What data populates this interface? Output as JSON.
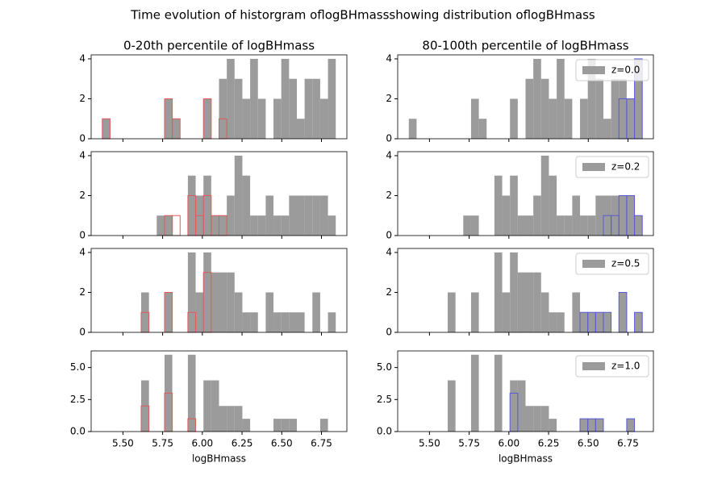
{
  "figure_title": "Time evolution of historgram oflogBHmassshowing distribution oflogBHmass",
  "chart_data": [
    {
      "type": "histogram",
      "title": "0-20th percentile of logBHmass",
      "bins": [
        5.37,
        5.419,
        5.468,
        5.517,
        5.566,
        5.615,
        5.664,
        5.713,
        5.762,
        5.811,
        5.86,
        5.909,
        5.958,
        6.007,
        6.056,
        6.105,
        6.154,
        6.203,
        6.252,
        6.301,
        6.35,
        6.399,
        6.448,
        6.497,
        6.546,
        6.595,
        6.644,
        6.693,
        6.742,
        6.791,
        6.84
      ],
      "series": [
        {
          "color": "#9b9b9b",
          "style": "filled",
          "values": [
            1,
            0,
            0,
            0,
            0,
            0,
            0,
            0,
            2,
            1,
            0,
            0,
            0,
            2,
            0,
            3,
            4,
            3,
            2,
            4,
            2,
            0,
            2,
            4,
            3,
            1,
            3,
            3,
            2,
            4
          ]
        },
        {
          "color": "#e05a5a",
          "style": "step",
          "values": [
            1,
            0,
            0,
            0,
            0,
            0,
            0,
            0,
            2,
            1,
            0,
            0,
            0,
            2,
            0,
            1,
            0,
            0,
            0,
            0,
            0,
            0,
            0,
            0,
            0,
            0,
            0,
            0,
            0,
            0
          ]
        }
      ],
      "xlim": [
        5.3,
        6.91
      ],
      "xticks": [
        5.5,
        5.75,
        6,
        6.25,
        6.5,
        6.75
      ],
      "ylim": [
        0,
        4.2
      ],
      "yticks": [
        0,
        2,
        4
      ]
    },
    {
      "type": "histogram",
      "title": "80-100th percentile of logBHmass",
      "bins": [
        5.37,
        5.419,
        5.468,
        5.517,
        5.566,
        5.615,
        5.664,
        5.713,
        5.762,
        5.811,
        5.86,
        5.909,
        5.958,
        6.007,
        6.056,
        6.105,
        6.154,
        6.203,
        6.252,
        6.301,
        6.35,
        6.399,
        6.448,
        6.497,
        6.546,
        6.595,
        6.644,
        6.693,
        6.742,
        6.791,
        6.84
      ],
      "series": [
        {
          "name": "z=0.0",
          "color": "#9b9b9b",
          "style": "filled",
          "values": [
            1,
            0,
            0,
            0,
            0,
            0,
            0,
            0,
            2,
            1,
            0,
            0,
            0,
            2,
            0,
            3,
            4,
            3,
            2,
            4,
            2,
            0,
            2,
            4,
            3,
            1,
            3,
            3,
            2,
            4
          ]
        },
        {
          "color": "#5a5ad6",
          "style": "step",
          "values": [
            0,
            0,
            0,
            0,
            0,
            0,
            0,
            0,
            0,
            0,
            0,
            0,
            0,
            0,
            0,
            0,
            0,
            0,
            0,
            0,
            0,
            0,
            0,
            0,
            0,
            0,
            0,
            2,
            2,
            4
          ]
        }
      ],
      "legend": "upper right",
      "xlim": [
        5.3,
        6.91
      ],
      "xticks": [
        5.5,
        5.75,
        6,
        6.25,
        6.5,
        6.75
      ],
      "ylim": [
        0,
        4.2
      ],
      "yticks": [
        0,
        2,
        4
      ]
    },
    {
      "type": "histogram",
      "bins": [
        5.37,
        5.419,
        5.468,
        5.517,
        5.566,
        5.615,
        5.664,
        5.713,
        5.762,
        5.811,
        5.86,
        5.909,
        5.958,
        6.007,
        6.056,
        6.105,
        6.154,
        6.203,
        6.252,
        6.301,
        6.35,
        6.399,
        6.448,
        6.497,
        6.546,
        6.595,
        6.644,
        6.693,
        6.742,
        6.791,
        6.84
      ],
      "series": [
        {
          "color": "#9b9b9b",
          "style": "filled",
          "values": [
            0,
            0,
            0,
            0,
            0,
            0,
            0,
            1,
            1,
            0,
            0,
            3,
            2,
            3,
            1,
            1,
            2,
            4,
            3,
            1,
            1,
            2,
            1,
            1,
            2,
            2,
            2,
            2,
            2,
            1
          ]
        },
        {
          "color": "#e05a5a",
          "style": "step",
          "values": [
            0,
            0,
            0,
            0,
            0,
            0,
            0,
            0,
            1,
            1,
            0,
            2,
            1,
            2,
            1,
            1,
            0,
            0,
            0,
            0,
            0,
            0,
            0,
            0,
            0,
            0,
            0,
            0,
            0,
            0
          ]
        }
      ],
      "xlim": [
        5.3,
        6.91
      ],
      "xticks": [
        5.5,
        5.75,
        6,
        6.25,
        6.5,
        6.75
      ],
      "ylim": [
        0,
        4.2
      ],
      "yticks": [
        0,
        2,
        4
      ]
    },
    {
      "type": "histogram",
      "bins": [
        5.37,
        5.419,
        5.468,
        5.517,
        5.566,
        5.615,
        5.664,
        5.713,
        5.762,
        5.811,
        5.86,
        5.909,
        5.958,
        6.007,
        6.056,
        6.105,
        6.154,
        6.203,
        6.252,
        6.301,
        6.35,
        6.399,
        6.448,
        6.497,
        6.546,
        6.595,
        6.644,
        6.693,
        6.742,
        6.791,
        6.84
      ],
      "series": [
        {
          "name": "z=0.2",
          "color": "#9b9b9b",
          "style": "filled",
          "values": [
            0,
            0,
            0,
            0,
            0,
            0,
            0,
            1,
            1,
            0,
            0,
            3,
            2,
            3,
            1,
            1,
            2,
            4,
            3,
            1,
            1,
            2,
            1,
            1,
            2,
            2,
            2,
            2,
            2,
            1
          ]
        },
        {
          "color": "#5a5ad6",
          "style": "step",
          "values": [
            0,
            0,
            0,
            0,
            0,
            0,
            0,
            0,
            0,
            0,
            0,
            0,
            0,
            0,
            0,
            0,
            0,
            0,
            0,
            0,
            0,
            0,
            0,
            0,
            0,
            1,
            1,
            2,
            2,
            1
          ]
        }
      ],
      "legend": "upper right",
      "xlim": [
        5.3,
        6.91
      ],
      "xticks": [
        5.5,
        5.75,
        6,
        6.25,
        6.5,
        6.75
      ],
      "ylim": [
        0,
        4.2
      ],
      "yticks": [
        0,
        2,
        4
      ]
    },
    {
      "type": "histogram",
      "bins": [
        5.37,
        5.419,
        5.468,
        5.517,
        5.566,
        5.615,
        5.664,
        5.713,
        5.762,
        5.811,
        5.86,
        5.909,
        5.958,
        6.007,
        6.056,
        6.105,
        6.154,
        6.203,
        6.252,
        6.301,
        6.35,
        6.399,
        6.448,
        6.497,
        6.546,
        6.595,
        6.644,
        6.693,
        6.742,
        6.791,
        6.84
      ],
      "series": [
        {
          "color": "#9b9b9b",
          "style": "filled",
          "values": [
            0,
            0,
            0,
            0,
            0,
            2,
            0,
            0,
            2,
            0,
            0,
            4,
            2,
            4,
            3,
            3,
            3,
            2,
            1,
            1,
            0,
            2,
            1,
            1,
            1,
            1,
            0,
            2,
            0,
            1
          ]
        },
        {
          "color": "#e05a5a",
          "style": "step",
          "values": [
            0,
            0,
            0,
            0,
            0,
            1,
            0,
            0,
            2,
            0,
            0,
            1,
            0,
            3,
            0,
            0,
            0,
            0,
            0,
            0,
            0,
            0,
            0,
            0,
            0,
            0,
            0,
            0,
            0,
            0
          ]
        }
      ],
      "xlim": [
        5.3,
        6.91
      ],
      "xticks": [
        5.5,
        5.75,
        6,
        6.25,
        6.5,
        6.75
      ],
      "ylim": [
        0,
        4.2
      ],
      "yticks": [
        0,
        2,
        4
      ]
    },
    {
      "type": "histogram",
      "bins": [
        5.37,
        5.419,
        5.468,
        5.517,
        5.566,
        5.615,
        5.664,
        5.713,
        5.762,
        5.811,
        5.86,
        5.909,
        5.958,
        6.007,
        6.056,
        6.105,
        6.154,
        6.203,
        6.252,
        6.301,
        6.35,
        6.399,
        6.448,
        6.497,
        6.546,
        6.595,
        6.644,
        6.693,
        6.742,
        6.791,
        6.84
      ],
      "series": [
        {
          "name": "z=0.5",
          "color": "#9b9b9b",
          "style": "filled",
          "values": [
            0,
            0,
            0,
            0,
            0,
            2,
            0,
            0,
            2,
            0,
            0,
            4,
            2,
            4,
            3,
            3,
            3,
            2,
            1,
            1,
            0,
            2,
            1,
            1,
            1,
            1,
            0,
            2,
            0,
            1
          ]
        },
        {
          "color": "#5a5ad6",
          "style": "step",
          "values": [
            0,
            0,
            0,
            0,
            0,
            0,
            0,
            0,
            0,
            0,
            0,
            0,
            0,
            0,
            0,
            0,
            0,
            0,
            0,
            0,
            0,
            0,
            1,
            1,
            1,
            1,
            0,
            2,
            0,
            1
          ]
        }
      ],
      "legend": "upper right",
      "xlim": [
        5.3,
        6.91
      ],
      "xticks": [
        5.5,
        5.75,
        6,
        6.25,
        6.5,
        6.75
      ],
      "ylim": [
        0,
        4.2
      ],
      "yticks": [
        0,
        2,
        4
      ]
    },
    {
      "type": "histogram",
      "xlabel": "logBHmass",
      "bins": [
        5.37,
        5.419,
        5.468,
        5.517,
        5.566,
        5.615,
        5.664,
        5.713,
        5.762,
        5.811,
        5.86,
        5.909,
        5.958,
        6.007,
        6.056,
        6.105,
        6.154,
        6.203,
        6.252,
        6.301,
        6.35,
        6.399,
        6.448,
        6.497,
        6.546,
        6.595,
        6.644,
        6.693,
        6.742,
        6.791,
        6.84
      ],
      "series": [
        {
          "color": "#9b9b9b",
          "style": "filled",
          "values": [
            0,
            0,
            0,
            0,
            0,
            4,
            0,
            0,
            6,
            0,
            0,
            6,
            0,
            4,
            4,
            2,
            2,
            2,
            1,
            0,
            0,
            0,
            1,
            1,
            1,
            0,
            0,
            0,
            1,
            0
          ]
        },
        {
          "color": "#e05a5a",
          "style": "step",
          "values": [
            0,
            0,
            0,
            0,
            0,
            2,
            0,
            0,
            3,
            0,
            0,
            1,
            0,
            0,
            0,
            0,
            0,
            0,
            0,
            0,
            0,
            0,
            0,
            0,
            0,
            0,
            0,
            0,
            0,
            0
          ]
        }
      ],
      "xlim": [
        5.3,
        6.91
      ],
      "xticks": [
        {
          "value": 5.5,
          "label": "5.50"
        },
        {
          "value": 5.75,
          "label": "5.75"
        },
        {
          "value": 6,
          "label": "6.00"
        },
        {
          "value": 6.25,
          "label": "6.25"
        },
        {
          "value": 6.5,
          "label": "6.50"
        },
        {
          "value": 6.75,
          "label": "6.75"
        }
      ],
      "ylim": [
        0,
        6.3
      ],
      "yticks": [
        {
          "value": 0,
          "label": "0.0"
        },
        2.5,
        {
          "value": 5,
          "label": "5.0"
        }
      ]
    },
    {
      "type": "histogram",
      "xlabel": "logBHmass",
      "bins": [
        5.37,
        5.419,
        5.468,
        5.517,
        5.566,
        5.615,
        5.664,
        5.713,
        5.762,
        5.811,
        5.86,
        5.909,
        5.958,
        6.007,
        6.056,
        6.105,
        6.154,
        6.203,
        6.252,
        6.301,
        6.35,
        6.399,
        6.448,
        6.497,
        6.546,
        6.595,
        6.644,
        6.693,
        6.742,
        6.791,
        6.84
      ],
      "series": [
        {
          "name": "z=1.0",
          "color": "#9b9b9b",
          "style": "filled",
          "values": [
            0,
            0,
            0,
            0,
            0,
            4,
            0,
            0,
            6,
            0,
            0,
            6,
            0,
            4,
            4,
            2,
            2,
            2,
            1,
            0,
            0,
            0,
            1,
            1,
            1,
            0,
            0,
            0,
            1,
            0
          ]
        },
        {
          "color": "#5a5ad6",
          "style": "step",
          "values": [
            0,
            0,
            0,
            0,
            0,
            0,
            0,
            0,
            0,
            0,
            0,
            0,
            0,
            3,
            0,
            0,
            0,
            0,
            0,
            0,
            0,
            0,
            1,
            1,
            1,
            0,
            0,
            0,
            1,
            0
          ]
        }
      ],
      "legend": "upper right",
      "xlim": [
        5.3,
        6.91
      ],
      "xticks": [
        {
          "value": 5.5,
          "label": "5.50"
        },
        {
          "value": 5.75,
          "label": "5.75"
        },
        {
          "value": 6,
          "label": "6.00"
        },
        {
          "value": 6.25,
          "label": "6.25"
        },
        {
          "value": 6.5,
          "label": "6.50"
        },
        {
          "value": 6.75,
          "label": "6.75"
        }
      ],
      "ylim": [
        0,
        6.3
      ],
      "yticks": [
        {
          "value": 0,
          "label": "0.0"
        },
        2.5,
        {
          "value": 5,
          "label": "5.0"
        }
      ]
    }
  ]
}
